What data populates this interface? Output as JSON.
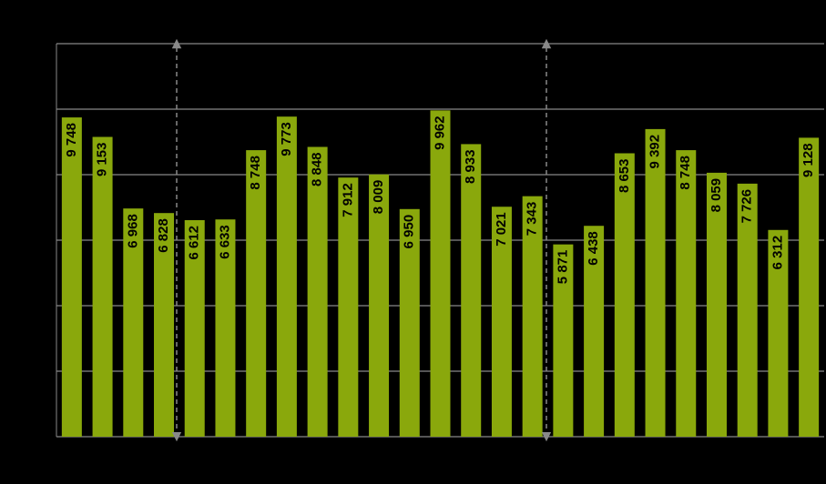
{
  "chart_data": {
    "type": "bar",
    "values": [
      9748,
      9153,
      6968,
      6828,
      6612,
      6633,
      8748,
      9773,
      8848,
      7912,
      8009,
      6950,
      9962,
      8933,
      7021,
      7343,
      5871,
      6438,
      8653,
      9392,
      8748,
      8059,
      7726,
      6312,
      9128
    ],
    "value_labels": [
      "9 748",
      "9 153",
      "6 968",
      "6 828",
      "6 612",
      "6 633",
      "8 748",
      "9 773",
      "8 848",
      "7 912",
      "8 009",
      "6 950",
      "9 962",
      "8 933",
      "7 021",
      "7 343",
      "5 871",
      "6 438",
      "8 653",
      "9 392",
      "8 748",
      "8 059",
      "7 726",
      "6 312",
      "9 128"
    ],
    "color": "#8aa80c",
    "ylim": [
      0,
      12000
    ],
    "yticks": [
      0,
      2000,
      4000,
      6000,
      8000,
      10000,
      12000
    ],
    "grid": true
  }
}
